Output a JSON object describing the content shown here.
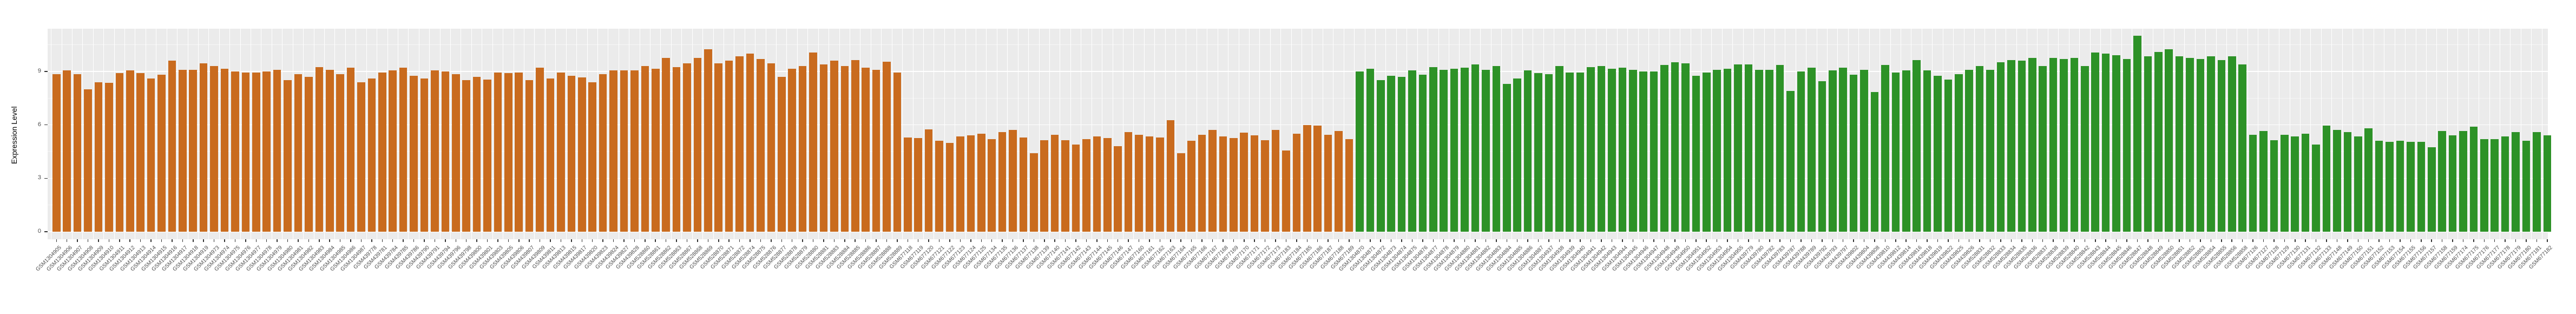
{
  "chart_data": {
    "type": "bar",
    "title": "",
    "xlabel": "",
    "ylabel": "Expression Level",
    "yticks": [
      0,
      3,
      6,
      9
    ],
    "ylim": [
      0,
      11.4
    ],
    "grid": "white major+minor horizontal gridlines and per-category vertical gridlines on grey panel",
    "legend": "none",
    "layout": {
      "panel_bg": "#EBEBEB",
      "grid_color": "#FFFFFF",
      "tick_color": "#333333",
      "axis_text_color": "#4D4D4D",
      "x_label_rotation_deg": 45
    },
    "series": [
      {
        "name": "group-1-orange",
        "color": "#C96B1E",
        "categories": [
          "GSM1304905",
          "GSM1304906",
          "GSM1304907",
          "GSM1304908",
          "GSM1304909",
          "GSM1304910",
          "GSM1304911",
          "GSM1304912",
          "GSM1304913",
          "GSM1304914",
          "GSM1304915",
          "GSM1304916",
          "GSM1304917",
          "GSM1304918",
          "GSM1304919",
          "GSM1304973",
          "GSM1304974",
          "GSM1304975",
          "GSM1304976",
          "GSM1304977",
          "GSM1304978",
          "GSM1304979",
          "GSM1304980",
          "GSM1304981",
          "GSM1304982",
          "GSM1304983",
          "GSM1304984",
          "GSM1304985",
          "GSM1304986",
          "GSM1304987",
          "GSM439778",
          "GSM439781",
          "GSM439784",
          "GSM439785",
          "GSM439786",
          "GSM439790",
          "GSM439791",
          "GSM439794",
          "GSM439796",
          "GSM439798",
          "GSM439800",
          "GSM439801",
          "GSM439803",
          "GSM439805",
          "GSM439806",
          "GSM439807",
          "GSM439809",
          "GSM439811",
          "GSM439813",
          "GSM439815",
          "GSM439817",
          "GSM439820",
          "GSM439823",
          "GSM439824",
          "GSM439827",
          "GSM439828",
          "GSM528860",
          "GSM528861",
          "GSM528862",
          "GSM528863",
          "GSM528867",
          "GSM528868",
          "GSM528869",
          "GSM528870",
          "GSM528871",
          "GSM528872",
          "GSM528874",
          "GSM528875",
          "GSM528876",
          "GSM528877",
          "GSM528878",
          "GSM528879",
          "GSM528880",
          "GSM528881",
          "GSM528883",
          "GSM528884",
          "GSM528885",
          "GSM528886",
          "GSM528887",
          "GSM528888",
          "GSM528889",
          "GSM677118",
          "GSM677119",
          "GSM677120",
          "GSM677121",
          "GSM677122",
          "GSM677123",
          "GSM677124",
          "GSM677125",
          "GSM677134",
          "GSM677135",
          "GSM677136",
          "GSM677137",
          "GSM677138",
          "GSM677139",
          "GSM677140",
          "GSM677141",
          "GSM677142",
          "GSM677143",
          "GSM677144",
          "GSM677145",
          "GSM677146",
          "GSM677147",
          "GSM677160",
          "GSM677161",
          "GSM677162",
          "GSM677163",
          "GSM677164",
          "GSM677165",
          "GSM677166",
          "GSM677167",
          "GSM677168",
          "GSM677169",
          "GSM677170",
          "GSM677171",
          "GSM677172",
          "GSM677173",
          "GSM677183",
          "GSM677184",
          "GSM677185",
          "GSM677186",
          "GSM677187",
          "GSM677188",
          "GSM677189"
        ],
        "values": [
          8.85,
          9.05,
          8.85,
          8.0,
          8.4,
          8.35,
          8.9,
          9.05,
          8.9,
          8.6,
          8.8,
          9.6,
          9.1,
          9.1,
          9.45,
          9.3,
          9.15,
          9.0,
          8.95,
          8.95,
          9.0,
          9.1,
          8.5,
          8.85,
          8.7,
          9.25,
          9.1,
          8.85,
          9.2,
          8.4,
          8.6,
          8.95,
          9.05,
          9.2,
          8.75,
          8.6,
          9.05,
          9.0,
          8.85,
          8.5,
          8.7,
          8.55,
          8.95,
          8.9,
          8.95,
          8.5,
          9.2,
          8.6,
          8.95,
          8.75,
          8.65,
          8.4,
          8.85,
          9.05,
          9.05,
          9.05,
          9.3,
          9.15,
          9.75,
          9.25,
          9.45,
          9.75,
          10.25,
          9.45,
          9.6,
          9.85,
          10.0,
          9.7,
          9.45,
          8.7,
          9.15,
          9.3,
          10.05,
          9.4,
          9.6,
          9.3,
          9.65,
          9.2,
          9.1,
          9.55,
          8.95,
          5.3,
          5.25,
          5.75,
          5.1,
          5.0,
          5.35,
          5.4,
          5.5,
          5.2,
          5.6,
          5.7,
          5.3,
          4.4,
          5.15,
          5.45,
          5.15,
          4.9,
          5.2,
          5.35,
          5.25,
          4.8,
          5.6,
          5.45,
          5.35,
          5.3,
          6.25,
          4.4,
          5.1,
          5.45,
          5.7,
          5.35,
          5.25,
          5.55,
          5.4,
          5.15,
          5.7,
          4.55,
          5.5,
          6.0,
          5.95,
          5.45,
          5.65,
          5.2
        ]
      },
      {
        "name": "group-2-green",
        "color": "#2D9227",
        "categories": [
          "GSM1304870",
          "GSM1304871",
          "GSM1304872",
          "GSM1304873",
          "GSM1304874",
          "GSM1304875",
          "GSM1304876",
          "GSM1304877",
          "GSM1304878",
          "GSM1304879",
          "GSM1304880",
          "GSM1304881",
          "GSM1304882",
          "GSM1304883",
          "GSM1304884",
          "GSM1304885",
          "GSM1304886",
          "GSM1304887",
          "GSM1304937",
          "GSM1304938",
          "GSM1304939",
          "GSM1304940",
          "GSM1304941",
          "GSM1304942",
          "GSM1304943",
          "GSM1304944",
          "GSM1304945",
          "GSM1304946",
          "GSM1304947",
          "GSM1304948",
          "GSM1304949",
          "GSM1304950",
          "GSM1304951",
          "GSM1304952",
          "GSM1304953",
          "GSM1304954",
          "GSM1304955",
          "GSM439779",
          "GSM439780",
          "GSM439782",
          "GSM439783",
          "GSM439787",
          "GSM439788",
          "GSM439789",
          "GSM439792",
          "GSM439793",
          "GSM439797",
          "GSM439802",
          "GSM439804",
          "GSM439808",
          "GSM439810",
          "GSM439812",
          "GSM439814",
          "GSM439816",
          "GSM439818",
          "GSM439819",
          "GSM439822",
          "GSM439825",
          "GSM439826",
          "GSM528831",
          "GSM528832",
          "GSM528833",
          "GSM528834",
          "GSM528835",
          "GSM528836",
          "GSM528837",
          "GSM528838",
          "GSM528839",
          "GSM528840",
          "GSM528842",
          "GSM528843",
          "GSM528844",
          "GSM528845",
          "GSM528846",
          "GSM528847",
          "GSM528848",
          "GSM528849",
          "GSM528850",
          "GSM528851",
          "GSM528852",
          "GSM528853",
          "GSM528854",
          "GSM528855",
          "GSM528856",
          "GSM528858",
          "GSM677126",
          "GSM677127",
          "GSM677128",
          "GSM677129",
          "GSM677130",
          "GSM677131",
          "GSM677132",
          "GSM677133",
          "GSM677148",
          "GSM677149",
          "GSM677150",
          "GSM677151",
          "GSM677152",
          "GSM677153",
          "GSM677154",
          "GSM677155",
          "GSM677156",
          "GSM677157",
          "GSM677158",
          "GSM677159",
          "GSM677174",
          "GSM677175",
          "GSM677176",
          "GSM677177",
          "GSM677178",
          "GSM677179",
          "GSM677180",
          "GSM677181",
          "GSM677182"
        ],
        "values": [
          9.0,
          9.15,
          8.5,
          8.75,
          8.7,
          9.05,
          8.8,
          9.25,
          9.1,
          9.15,
          9.2,
          9.4,
          9.1,
          9.3,
          8.3,
          8.6,
          9.05,
          8.9,
          8.85,
          9.3,
          8.95,
          8.95,
          9.25,
          9.3,
          9.15,
          9.2,
          9.1,
          9.0,
          9.0,
          9.35,
          9.5,
          9.45,
          8.75,
          8.95,
          9.1,
          9.15,
          9.4,
          9.4,
          9.1,
          9.1,
          9.35,
          7.9,
          9.0,
          9.2,
          8.45,
          9.05,
          9.2,
          8.8,
          9.1,
          7.85,
          9.35,
          8.95,
          9.05,
          9.65,
          9.05,
          8.75,
          8.55,
          8.85,
          9.1,
          9.3,
          9.1,
          9.5,
          9.65,
          9.6,
          9.75,
          9.3,
          9.75,
          9.7,
          9.75,
          9.3,
          10.05,
          10.0,
          9.9,
          9.7,
          11.0,
          9.85,
          10.1,
          10.25,
          9.85,
          9.75,
          9.7,
          9.85,
          9.65,
          9.85,
          9.4,
          5.45,
          5.65,
          5.15,
          5.45,
          5.35,
          5.5,
          4.9,
          5.95,
          5.7,
          5.6,
          5.35,
          5.8,
          5.1,
          5.05,
          5.1,
          5.05,
          5.05,
          4.75,
          5.65,
          5.4,
          5.65,
          5.9,
          5.2,
          5.2,
          5.35,
          5.6,
          5.1,
          5.6,
          5.4
        ]
      }
    ]
  }
}
